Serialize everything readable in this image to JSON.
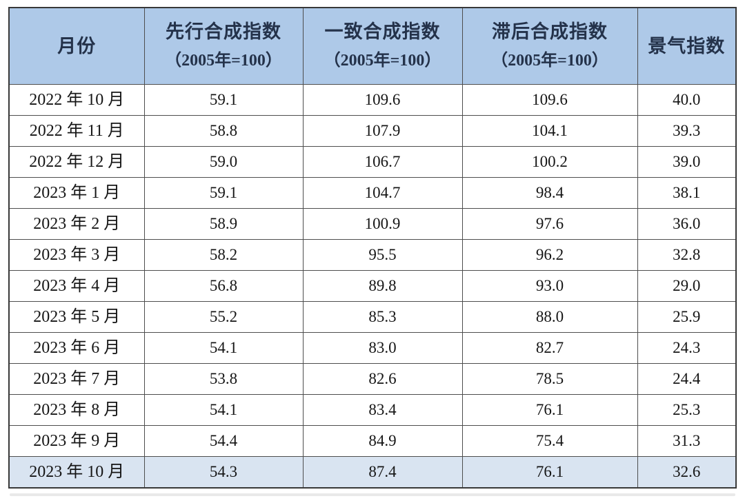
{
  "colors": {
    "header_bg": "#aec9e8",
    "highlight_row_bg": "#d9e4f1",
    "outer_border": "#383838",
    "inner_border": "#4d4d4d",
    "header_text": "#24324a",
    "body_text": "#151515"
  },
  "table": {
    "columns": [
      {
        "key": "month",
        "label": "月份",
        "sublabel": ""
      },
      {
        "key": "leading",
        "label": "先行合成指数",
        "sublabel": "（2005年=100）"
      },
      {
        "key": "coincident",
        "label": "一致合成指数",
        "sublabel": "（2005年=100）"
      },
      {
        "key": "lagging",
        "label": "滞后合成指数",
        "sublabel": "（2005年=100）"
      },
      {
        "key": "prosperity",
        "label": "景气指数",
        "sublabel": ""
      }
    ],
    "rows": [
      {
        "month": "2022 年 10 月",
        "leading": "59.1",
        "coincident": "109.6",
        "lagging": "109.6",
        "prosperity": "40.0",
        "highlighted": false
      },
      {
        "month": "2022 年 11 月",
        "leading": "58.8",
        "coincident": "107.9",
        "lagging": "104.1",
        "prosperity": "39.3",
        "highlighted": false
      },
      {
        "month": "2022 年 12 月",
        "leading": "59.0",
        "coincident": "106.7",
        "lagging": "100.2",
        "prosperity": "39.0",
        "highlighted": false
      },
      {
        "month": "2023 年 1 月",
        "leading": "59.1",
        "coincident": "104.7",
        "lagging": "98.4",
        "prosperity": "38.1",
        "highlighted": false
      },
      {
        "month": "2023 年 2 月",
        "leading": "58.9",
        "coincident": "100.9",
        "lagging": "97.6",
        "prosperity": "36.0",
        "highlighted": false
      },
      {
        "month": "2023 年 3 月",
        "leading": "58.2",
        "coincident": "95.5",
        "lagging": "96.2",
        "prosperity": "32.8",
        "highlighted": false
      },
      {
        "month": "2023 年 4 月",
        "leading": "56.8",
        "coincident": "89.8",
        "lagging": "93.0",
        "prosperity": "29.0",
        "highlighted": false
      },
      {
        "month": "2023 年 5 月",
        "leading": "55.2",
        "coincident": "85.3",
        "lagging": "88.0",
        "prosperity": "25.9",
        "highlighted": false
      },
      {
        "month": "2023 年 6 月",
        "leading": "54.1",
        "coincident": "83.0",
        "lagging": "82.7",
        "prosperity": "24.3",
        "highlighted": false
      },
      {
        "month": "2023 年 7 月",
        "leading": "53.8",
        "coincident": "82.6",
        "lagging": "78.5",
        "prosperity": "24.4",
        "highlighted": false
      },
      {
        "month": "2023 年 8 月",
        "leading": "54.1",
        "coincident": "83.4",
        "lagging": "76.1",
        "prosperity": "25.3",
        "highlighted": false
      },
      {
        "month": "2023 年 9 月",
        "leading": "54.4",
        "coincident": "84.9",
        "lagging": "75.4",
        "prosperity": "31.3",
        "highlighted": false
      },
      {
        "month": "2023 年 10 月",
        "leading": "54.3",
        "coincident": "87.4",
        "lagging": "76.1",
        "prosperity": "32.6",
        "highlighted": true
      }
    ]
  },
  "chart_data": {
    "type": "table",
    "columns": [
      "月份",
      "先行合成指数（2005年=100）",
      "一致合成指数（2005年=100）",
      "滞后合成指数（2005年=100）",
      "景气指数"
    ],
    "rows": [
      [
        "2022 年 10 月",
        59.1,
        109.6,
        109.6,
        40.0
      ],
      [
        "2022 年 11 月",
        58.8,
        107.9,
        104.1,
        39.3
      ],
      [
        "2022 年 12 月",
        59.0,
        106.7,
        100.2,
        39.0
      ],
      [
        "2023 年 1 月",
        59.1,
        104.7,
        98.4,
        38.1
      ],
      [
        "2023 年 2 月",
        58.9,
        100.9,
        97.6,
        36.0
      ],
      [
        "2023 年 3 月",
        58.2,
        95.5,
        96.2,
        32.8
      ],
      [
        "2023 年 4 月",
        56.8,
        89.8,
        93.0,
        29.0
      ],
      [
        "2023 年 5 月",
        55.2,
        85.3,
        88.0,
        25.9
      ],
      [
        "2023 年 6 月",
        54.1,
        83.0,
        82.7,
        24.3
      ],
      [
        "2023 年 7 月",
        53.8,
        82.6,
        78.5,
        24.4
      ],
      [
        "2023 年 8 月",
        54.1,
        83.4,
        76.1,
        25.3
      ],
      [
        "2023 年 9 月",
        54.4,
        84.9,
        75.4,
        31.3
      ],
      [
        "2023 年 10 月",
        54.3,
        87.4,
        76.1,
        32.6
      ]
    ],
    "highlighted_row_index": 12
  }
}
